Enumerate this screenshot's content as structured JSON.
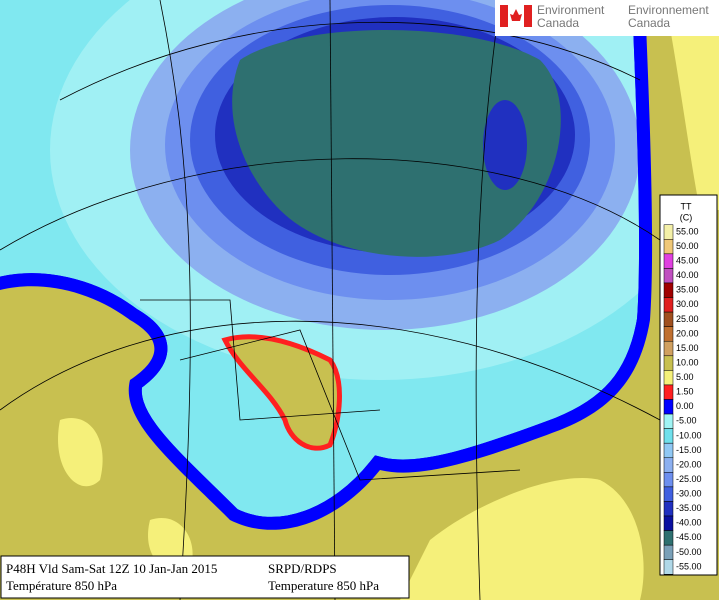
{
  "logo": {
    "english": [
      "Environment",
      "Canada"
    ],
    "french": [
      "Environnement",
      "Canada"
    ]
  },
  "legend": {
    "title": [
      "TT",
      "(C)"
    ],
    "labels": [
      "55.00",
      "50.00",
      "45.00",
      "40.00",
      "35.00",
      "30.00",
      "25.00",
      "20.00",
      "15.00",
      "10.00",
      "5.00",
      "1.50",
      "0.00",
      "-5.00",
      "-10.00",
      "-15.00",
      "-20.00",
      "-25.00",
      "-30.00",
      "-35.00",
      "-40.00",
      "-45.00",
      "-50.00",
      "-55.00"
    ],
    "colors": [
      "#f4f0a8",
      "#f0c878",
      "#e040e0",
      "#c050c0",
      "#a00000",
      "#e02020",
      "#a05020",
      "#c07030",
      "#d0a060",
      "#c8c050",
      "#f5f07a",
      "#ff2020",
      "#0000ff",
      "#a0f4f4",
      "#70e0ec",
      "#90c8f4",
      "#8cb0f0",
      "#6d8fef",
      "#4060e0",
      "#2030c0",
      "#0a10a0",
      "#2e7070",
      "#7aa0b8",
      "#b0d8e8"
    ]
  },
  "caption": {
    "left": [
      "P48H Vld Sam-Sat 12Z 10 Jan-Jan 2015",
      "Température 850 hPa"
    ],
    "right": [
      "SRPD/RDPS",
      "Temperature 850 hPa"
    ]
  }
}
